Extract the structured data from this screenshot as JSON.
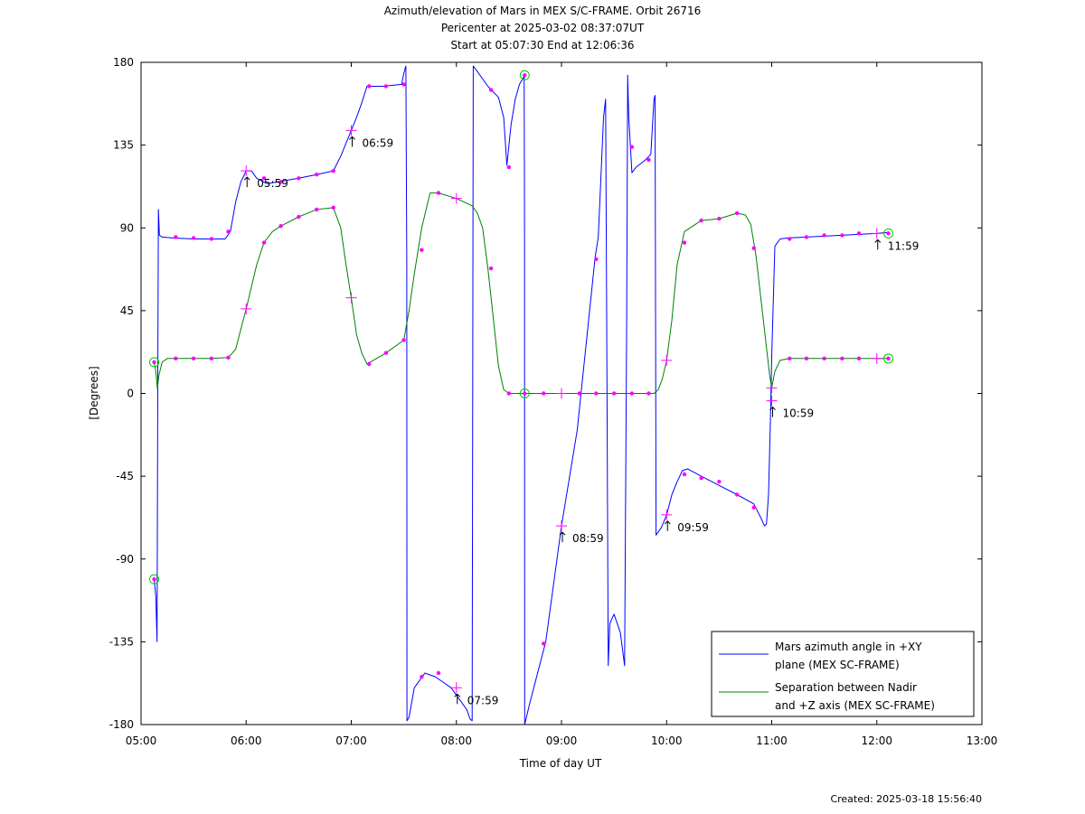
{
  "header": {
    "title": "Azimuth/elevation of Mars in MEX S/C-FRAME.  Orbit 26716",
    "subtitle1": "Pericenter at 2025-03-02 08:37:07UT",
    "subtitle2": "Start at 05:07:30 End at 12:06:36"
  },
  "footer": {
    "created": "Created: 2025-03-18 15:56:40"
  },
  "colors": {
    "azimuth": "#0000ff",
    "separation": "#008000",
    "marker": "#ff00ff",
    "circle": "#00cc00"
  },
  "chart_data": {
    "type": "line",
    "title": "Azimuth/elevation of Mars in MEX S/C-FRAME.  Orbit 26716",
    "xlabel": "Time of day UT",
    "ylabel": "[Degrees]",
    "xlim": [
      5.0,
      13.0
    ],
    "ylim": [
      -180,
      180
    ],
    "x_ticks": [
      5,
      6,
      7,
      8,
      9,
      10,
      11,
      12,
      13
    ],
    "x_tick_labels": [
      "05:00",
      "06:00",
      "07:00",
      "08:00",
      "09:00",
      "10:00",
      "11:00",
      "12:00",
      "13:00"
    ],
    "y_ticks": [
      180,
      135,
      90,
      45,
      0,
      -45,
      -90,
      -135,
      -180
    ],
    "y_tick_labels": [
      "180",
      "135",
      "90",
      "45",
      "0",
      "-45",
      "-90",
      "-135",
      "-180"
    ],
    "grid": false,
    "legend_position": "bottom-right",
    "series": [
      {
        "name": "Mars azimuth angle in +XY plane (MEX SC-FRAME)",
        "legend_lines": [
          "Mars azimuth angle in +XY",
          "plane (MEX SC-FRAME)"
        ],
        "color": "#0000ff",
        "x": [
          5.125,
          5.14,
          5.152,
          5.16,
          5.165,
          5.175,
          5.2,
          5.3,
          5.5,
          5.7,
          5.8,
          5.85,
          5.9,
          5.95,
          6.0,
          6.05,
          6.1,
          6.2,
          6.3,
          6.5,
          6.67,
          6.83,
          6.9,
          6.95,
          7.0,
          7.05,
          7.1,
          7.15,
          7.3,
          7.48,
          7.5,
          7.52,
          7.528,
          7.53,
          7.55,
          7.6,
          7.7,
          7.8,
          7.95,
          8.05,
          8.1,
          8.13,
          8.15,
          8.16,
          8.2,
          8.3,
          8.4,
          8.45,
          8.48,
          8.52,
          8.56,
          8.6,
          8.64,
          8.645,
          8.648,
          8.65,
          8.7,
          8.85,
          9.0,
          9.15,
          9.32,
          9.35,
          9.4,
          9.42,
          9.43,
          9.445,
          9.46,
          9.5,
          9.56,
          9.6,
          9.62,
          9.63,
          9.64,
          9.67,
          9.71,
          9.8,
          9.85,
          9.88,
          9.89,
          9.9,
          9.95,
          10.0,
          10.05,
          10.1,
          10.15,
          10.2,
          10.33,
          10.5,
          10.67,
          10.83,
          10.9,
          10.93,
          10.95,
          10.97,
          10.99,
          11.0,
          11.03,
          11.08,
          11.15,
          11.33,
          11.5,
          11.67,
          11.83,
          12.0,
          12.11
        ],
        "y": [
          -101,
          -110,
          -135,
          20,
          100,
          86,
          85,
          84.5,
          84,
          84,
          84,
          88,
          104,
          115,
          121,
          121,
          117,
          114,
          115,
          117,
          119,
          121,
          129,
          136,
          143,
          150,
          158,
          167,
          167,
          168,
          174,
          178,
          70,
          -178,
          -176,
          -160,
          -152,
          -154,
          -160,
          -168,
          -172,
          -177,
          -178,
          178,
          175,
          167,
          161,
          150,
          124,
          146,
          160,
          168,
          172,
          173,
          100,
          -180,
          -168,
          -135,
          -72,
          -20,
          74,
          85,
          150,
          160,
          40,
          -148,
          -125,
          -120,
          -130,
          -148,
          40,
          173,
          150,
          120,
          123,
          127,
          130,
          160,
          162,
          -77,
          -73,
          -66,
          -55,
          -48,
          -42,
          -41,
          -45,
          -50,
          -55,
          -60,
          -68,
          -72,
          -71,
          -55,
          -10,
          20,
          80,
          84,
          84.5,
          85,
          85.5,
          86,
          86.5,
          87,
          87.5
        ]
      },
      {
        "name": "Separation between Nadir and +Z axis (MEX SC-FRAME)",
        "legend_lines": [
          "Separation between Nadir",
          "and +Z axis (MEX SC-FRAME)"
        ],
        "color": "#008000",
        "x": [
          5.125,
          5.14,
          5.155,
          5.16,
          5.17,
          5.2,
          5.25,
          5.3,
          5.5,
          5.67,
          5.83,
          5.9,
          6.0,
          6.1,
          6.17,
          6.25,
          6.33,
          6.5,
          6.67,
          6.83,
          6.9,
          6.95,
          7.0,
          7.05,
          7.1,
          7.15,
          7.33,
          7.5,
          7.55,
          7.6,
          7.67,
          7.75,
          7.83,
          8.0,
          8.15,
          8.2,
          8.25,
          8.3,
          8.4,
          8.45,
          8.5,
          8.55,
          8.64,
          8.83,
          9.0,
          9.17,
          9.33,
          9.5,
          9.67,
          9.88,
          9.92,
          9.96,
          10.0,
          10.05,
          10.1,
          10.17,
          10.33,
          10.5,
          10.67,
          10.75,
          10.8,
          10.85,
          10.9,
          10.95,
          10.98,
          11.0,
          11.03,
          11.08,
          11.17,
          11.33,
          11.5,
          11.67,
          11.83,
          12.0,
          12.11
        ],
        "y": [
          17,
          12,
          3,
          5,
          10,
          17,
          19,
          19,
          19,
          19,
          19.5,
          24,
          46,
          70,
          82,
          88,
          91,
          96,
          100,
          101,
          90,
          70,
          52,
          32,
          22,
          16,
          22,
          29,
          45,
          65,
          90,
          109,
          109,
          106,
          102,
          98,
          90,
          68,
          15,
          2,
          0,
          0,
          0,
          0,
          0,
          0,
          0,
          0,
          0,
          0,
          2,
          8,
          18,
          40,
          70,
          88,
          94,
          95,
          98,
          97,
          92,
          75,
          50,
          25,
          10,
          3,
          12,
          18,
          19,
          19,
          19,
          19,
          19,
          19,
          19
        ]
      }
    ],
    "markers": {
      "azimuth_dots": [
        [
          5.33,
          85
        ],
        [
          5.5,
          84.5
        ],
        [
          5.67,
          84
        ],
        [
          5.83,
          88
        ],
        [
          6.17,
          117
        ],
        [
          6.33,
          115
        ],
        [
          6.5,
          117
        ],
        [
          6.67,
          119
        ],
        [
          6.83,
          121
        ],
        [
          7.17,
          167
        ],
        [
          7.33,
          167
        ],
        [
          7.5,
          168
        ],
        [
          7.67,
          -154
        ],
        [
          7.83,
          -152
        ],
        [
          8.33,
          165
        ],
        [
          8.5,
          123
        ],
        [
          8.83,
          -136
        ],
        [
          9.33,
          73
        ],
        [
          9.67,
          134
        ],
        [
          9.83,
          127
        ],
        [
          10.17,
          -44
        ],
        [
          10.33,
          -46
        ],
        [
          10.5,
          -48
        ],
        [
          10.67,
          -55
        ],
        [
          10.83,
          -62
        ],
        [
          11.17,
          84
        ],
        [
          11.33,
          85
        ],
        [
          11.5,
          86
        ],
        [
          11.67,
          86
        ],
        [
          11.83,
          87
        ]
      ],
      "separation_dots": [
        [
          5.33,
          19
        ],
        [
          5.5,
          19
        ],
        [
          5.67,
          19
        ],
        [
          5.83,
          19.5
        ],
        [
          6.17,
          82
        ],
        [
          6.33,
          91
        ],
        [
          6.5,
          96
        ],
        [
          6.67,
          100
        ],
        [
          6.83,
          101
        ],
        [
          7.17,
          16
        ],
        [
          7.33,
          22
        ],
        [
          7.5,
          29
        ],
        [
          7.67,
          78
        ],
        [
          7.83,
          109
        ],
        [
          8.33,
          68
        ],
        [
          8.5,
          0
        ],
        [
          8.83,
          0
        ],
        [
          9.17,
          0
        ],
        [
          9.33,
          0
        ],
        [
          9.5,
          0
        ],
        [
          9.67,
          0
        ],
        [
          9.83,
          0
        ],
        [
          10.17,
          82
        ],
        [
          10.33,
          94
        ],
        [
          10.5,
          95
        ],
        [
          10.67,
          98
        ],
        [
          10.83,
          79
        ],
        [
          11.17,
          19
        ],
        [
          11.33,
          19
        ],
        [
          11.5,
          19
        ],
        [
          11.67,
          19
        ],
        [
          11.83,
          19
        ]
      ],
      "crosses": [
        [
          6.0,
          121
        ],
        [
          6.0,
          46
        ],
        [
          7.0,
          143
        ],
        [
          7.0,
          52
        ],
        [
          8.0,
          -160
        ],
        [
          8.0,
          106
        ],
        [
          9.0,
          -72
        ],
        [
          9.0,
          0
        ],
        [
          10.0,
          -66
        ],
        [
          10.0,
          18
        ],
        [
          11.0,
          -4
        ],
        [
          11.0,
          3
        ],
        [
          12.0,
          87
        ],
        [
          12.0,
          19
        ]
      ],
      "circles": [
        [
          5.125,
          -101
        ],
        [
          5.125,
          17
        ],
        [
          8.65,
          173
        ],
        [
          8.65,
          0
        ],
        [
          12.11,
          87
        ],
        [
          12.11,
          19
        ]
      ],
      "time_labels": [
        {
          "t": 6.0,
          "y": 121,
          "label": "05:59"
        },
        {
          "t": 7.0,
          "y": 143,
          "label": "06:59"
        },
        {
          "t": 8.0,
          "y": -160,
          "label": "07:59"
        },
        {
          "t": 9.0,
          "y": -72,
          "label": "08:59"
        },
        {
          "t": 10.0,
          "y": -66,
          "label": "09:59"
        },
        {
          "t": 11.0,
          "y": -4,
          "label": "10:59"
        },
        {
          "t": 12.0,
          "y": 87,
          "label": "11:59"
        }
      ]
    }
  }
}
